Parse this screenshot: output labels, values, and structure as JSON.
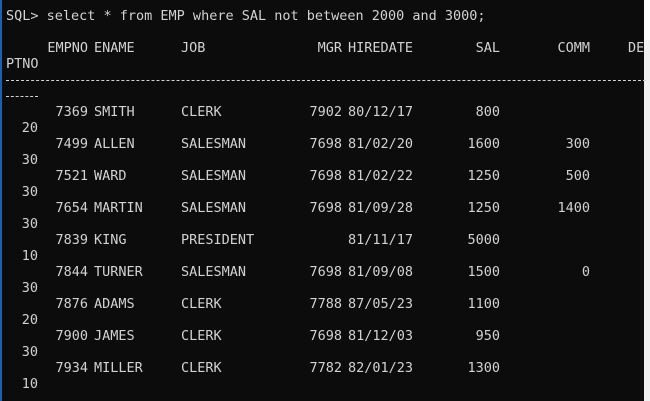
{
  "prompt_line": "SQL> select * from EMP where SAL not between 2000 and 3000;",
  "headers": {
    "empno": "EMPNO",
    "ename": "ENAME",
    "job": "JOB",
    "mgr": "MGR",
    "hiredate": "HIREDATE",
    "sal": "SAL",
    "comm": "COMM",
    "dept_part1": "DE",
    "dept_part2": "PTNO"
  },
  "rows": [
    {
      "empno": "7369",
      "ename": "SMITH",
      "job": "CLERK",
      "mgr": "7902",
      "hiredate": "80/12/17",
      "sal": "800",
      "comm": "",
      "deptno": "20"
    },
    {
      "empno": "7499",
      "ename": "ALLEN",
      "job": "SALESMAN",
      "mgr": "7698",
      "hiredate": "81/02/20",
      "sal": "1600",
      "comm": "300",
      "deptno": "30"
    },
    {
      "empno": "7521",
      "ename": "WARD",
      "job": "SALESMAN",
      "mgr": "7698",
      "hiredate": "81/02/22",
      "sal": "1250",
      "comm": "500",
      "deptno": "30"
    },
    {
      "empno": "7654",
      "ename": "MARTIN",
      "job": "SALESMAN",
      "mgr": "7698",
      "hiredate": "81/09/28",
      "sal": "1250",
      "comm": "1400",
      "deptno": "30"
    },
    {
      "empno": "7839",
      "ename": "KING",
      "job": "PRESIDENT",
      "mgr": "",
      "hiredate": "81/11/17",
      "sal": "5000",
      "comm": "",
      "deptno": "10"
    },
    {
      "empno": "7844",
      "ename": "TURNER",
      "job": "SALESMAN",
      "mgr": "7698",
      "hiredate": "81/09/08",
      "sal": "1500",
      "comm": "0",
      "deptno": "30"
    },
    {
      "empno": "7876",
      "ename": "ADAMS",
      "job": "CLERK",
      "mgr": "7788",
      "hiredate": "87/05/23",
      "sal": "1100",
      "comm": "",
      "deptno": "20"
    },
    {
      "empno": "7900",
      "ename": "JAMES",
      "job": "CLERK",
      "mgr": "7698",
      "hiredate": "81/12/03",
      "sal": "950",
      "comm": "",
      "deptno": "30"
    },
    {
      "empno": "7934",
      "ename": "MILLER",
      "job": "CLERK",
      "mgr": "7782",
      "hiredate": "82/01/23",
      "sal": "1300",
      "comm": "",
      "deptno": "10"
    }
  ],
  "colors": {
    "background": "#0c0c0c",
    "text": "#d2d2d2",
    "border": "#1e5fb4"
  }
}
